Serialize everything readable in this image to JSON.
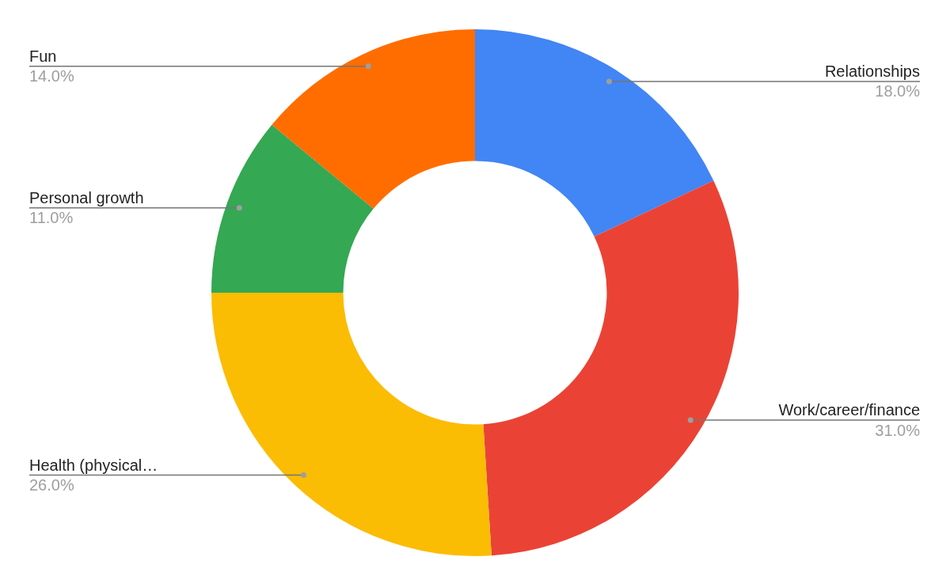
{
  "chart_data": {
    "type": "donut",
    "categories": [
      "Relationships",
      "Work/career/finance",
      "Health (physical…",
      "Personal growth",
      "Fun"
    ],
    "values": [
      18,
      31,
      26,
      11,
      14
    ],
    "colors": [
      "#4285f4",
      "#ea4335",
      "#fbbc04",
      "#34a853",
      "#ff6d01"
    ],
    "value_labels": [
      "18.0%",
      "31.0%",
      "26.0%",
      "11.0%",
      "14.0%"
    ],
    "legend": false
  }
}
